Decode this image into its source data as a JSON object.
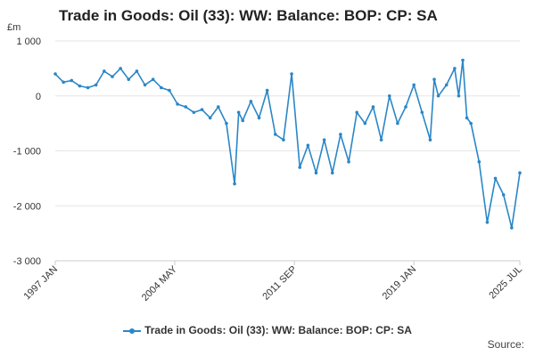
{
  "chart_data": {
    "type": "line",
    "title": "Trade in Goods: Oil (33): WW: Balance: BOP: CP: SA",
    "ylabel": "£m",
    "ylim": [
      -3000,
      1000
    ],
    "y_ticks": [
      1000,
      0,
      -1000,
      -2000,
      -3000
    ],
    "y_tick_labels": [
      "1 000",
      "0",
      "-1 000",
      "-2 000",
      "-3 000"
    ],
    "x_tick_labels": [
      "1997 JAN",
      "2004 MAY",
      "2011 SEP",
      "2019 JAN",
      "2025 JUL"
    ],
    "x_tick_years": [
      1997.0,
      2004.33,
      2011.67,
      2019.0,
      2025.5
    ],
    "xlim": [
      1997.0,
      2025.5
    ],
    "grid": true,
    "legend_position": "bottom",
    "series": [
      {
        "name": "Trade in Goods: Oil (33): WW: Balance: BOP: CP: SA",
        "color": "#2a87c7",
        "x": [
          1997.0,
          1997.5,
          1998.0,
          1998.5,
          1999.0,
          1999.5,
          2000.0,
          2000.5,
          2001.0,
          2001.5,
          2002.0,
          2002.5,
          2003.0,
          2003.5,
          2004.0,
          2004.5,
          2005.0,
          2005.5,
          2006.0,
          2006.5,
          2007.0,
          2007.5,
          2008.0,
          2008.25,
          2008.5,
          2009.0,
          2009.5,
          2010.0,
          2010.5,
          2011.0,
          2011.5,
          2012.0,
          2012.5,
          2013.0,
          2013.5,
          2014.0,
          2014.5,
          2015.0,
          2015.5,
          2016.0,
          2016.5,
          2017.0,
          2017.5,
          2018.0,
          2018.5,
          2019.0,
          2019.5,
          2020.0,
          2020.25,
          2020.5,
          2021.0,
          2021.5,
          2021.75,
          2022.0,
          2022.25,
          2022.5,
          2023.0,
          2023.5,
          2024.0,
          2024.5,
          2025.0,
          2025.5
        ],
        "values": [
          400,
          250,
          280,
          180,
          150,
          200,
          450,
          350,
          500,
          300,
          450,
          200,
          300,
          150,
          100,
          -150,
          -200,
          -300,
          -250,
          -400,
          -200,
          -500,
          -1600,
          -300,
          -450,
          -100,
          -400,
          100,
          -700,
          -800,
          400,
          -1300,
          -900,
          -1400,
          -800,
          -1400,
          -700,
          -1200,
          -300,
          -500,
          -200,
          -800,
          0,
          -500,
          -200,
          200,
          -300,
          -800,
          300,
          0,
          200,
          500,
          0,
          650,
          -400,
          -500,
          -1200,
          -2300,
          -1500,
          -1800,
          -2400,
          -1400
        ]
      }
    ],
    "legend_label": "Trade in Goods: Oil (33): WW: Balance: BOP: CP: SA",
    "unit_label": "£m",
    "source_label": "Source:"
  }
}
